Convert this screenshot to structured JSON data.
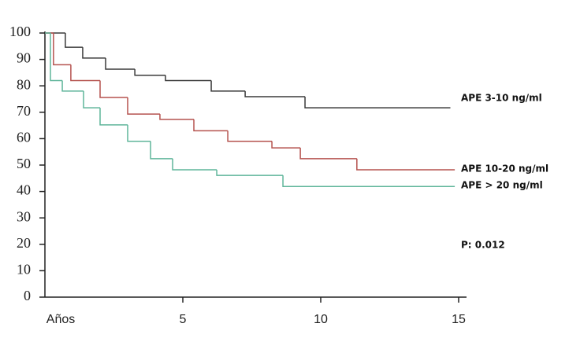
{
  "chart_data": {
    "type": "step",
    "xlim": [
      0,
      15
    ],
    "ylim": [
      0,
      100
    ],
    "xticks": [
      {
        "value": 0,
        "label": "Años"
      },
      5,
      10,
      15
    ],
    "yticks": [
      0,
      10,
      20,
      30,
      40,
      50,
      60,
      70,
      80,
      90,
      100
    ],
    "annotation": "P: 0.012",
    "series": [
      {
        "name": "APE 3-10 ng/ml",
        "color": "#3a3a3a",
        "x": [
          0,
          0.74,
          1.37,
          2.2,
          3.26,
          4.37,
          6.03,
          7.26,
          9.43,
          14.7
        ],
        "values": [
          100,
          94.6,
          90.5,
          86.3,
          84,
          82,
          78,
          75.9,
          71.7,
          71.7
        ]
      },
      {
        "name": "APE  10-20 ng/ml",
        "color": "#b5524e",
        "x": [
          0,
          0.31,
          0.94,
          2.0,
          3.0,
          4.17,
          5.4,
          6.63,
          8.23,
          9.26,
          11.31,
          14.86
        ],
        "values": [
          100,
          88,
          82,
          75.6,
          69.3,
          67.3,
          63,
          59,
          56.5,
          52.4,
          48.2,
          48.2
        ]
      },
      {
        "name": "APE > 20 ng/ml",
        "color": "#5fb59a",
        "x": [
          0,
          0.2,
          0.63,
          1.4,
          2.0,
          3.0,
          3.83,
          4.63,
          6.23,
          8.63,
          14.86
        ],
        "values": [
          100,
          82,
          78,
          71.7,
          65.2,
          59,
          52.4,
          48.2,
          46.1,
          41.9,
          41.9
        ]
      }
    ]
  }
}
